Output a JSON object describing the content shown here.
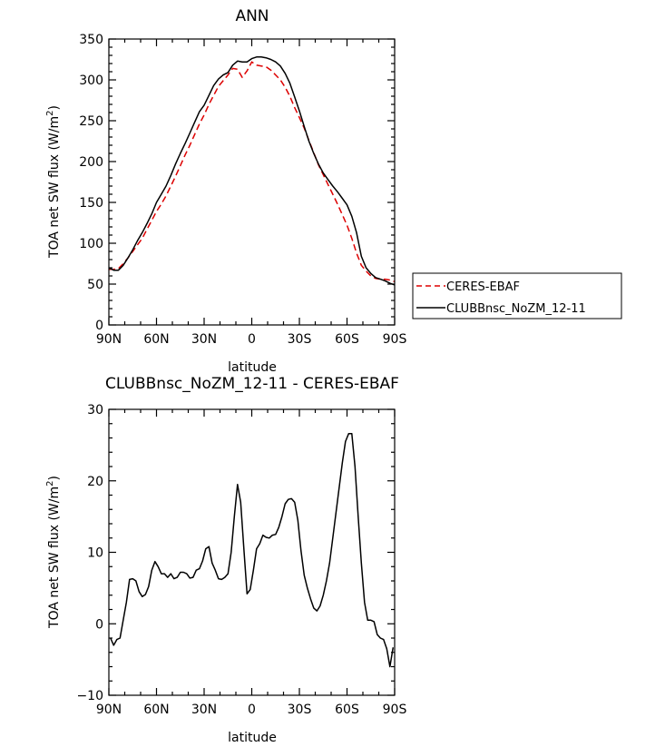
{
  "chart_data": [
    {
      "type": "line",
      "title": "ANN",
      "xlabel": "latitude",
      "ylabel": "TOA net SW flux (W/m²)",
      "ylabel_main": "TOA net SW flux (W/m",
      "ylabel_sup": "2",
      "ylabel_end": ")",
      "xlim": [
        -90,
        90
      ],
      "ylim": [
        0,
        350
      ],
      "x_direction": "90N on left to 90S on right",
      "x_ticks": [
        {
          "value": -90,
          "label": "90N"
        },
        {
          "value": -60,
          "label": "60N"
        },
        {
          "value": -30,
          "label": "30N"
        },
        {
          "value": 0,
          "label": "0"
        },
        {
          "value": 30,
          "label": "30S"
        },
        {
          "value": 60,
          "label": "60S"
        },
        {
          "value": 90,
          "label": "90S"
        }
      ],
      "y_ticks": [
        {
          "value": 0,
          "label": "0"
        },
        {
          "value": 50,
          "label": "50"
        },
        {
          "value": 100,
          "label": "100"
        },
        {
          "value": 150,
          "label": "150"
        },
        {
          "value": 200,
          "label": "200"
        },
        {
          "value": 250,
          "label": "250"
        },
        {
          "value": 300,
          "label": "300"
        },
        {
          "value": 350,
          "label": "350"
        }
      ],
      "legend_placement": "right-middle",
      "series": [
        {
          "name": "CERES-EBAF",
          "color": "#dd0000",
          "dash": "dashed",
          "x": [
            -90,
            -87,
            -84,
            -81,
            -78,
            -75,
            -72,
            -69,
            -66,
            -63,
            -60,
            -57,
            -54,
            -51,
            -48,
            -45,
            -42,
            -39,
            -36,
            -33,
            -30,
            -27,
            -24,
            -21,
            -18,
            -15,
            -12,
            -9,
            -6,
            -3,
            0,
            3,
            6,
            9,
            12,
            15,
            18,
            21,
            24,
            27,
            30,
            33,
            36,
            39,
            42,
            45,
            48,
            51,
            54,
            57,
            60,
            63,
            66,
            69,
            72,
            75,
            78,
            81,
            84,
            87,
            90
          ],
          "y": [
            68,
            68,
            69,
            75,
            82,
            90,
            98,
            106,
            117,
            128,
            139,
            148,
            158,
            170,
            182,
            195,
            208,
            220,
            233,
            246,
            257,
            270,
            281,
            292,
            299,
            306,
            314,
            313,
            303,
            311,
            322,
            318,
            317,
            316,
            312,
            306,
            300,
            291,
            280,
            266,
            254,
            241,
            226,
            211,
            196,
            184,
            172,
            160,
            148,
            135,
            122,
            106,
            88,
            73,
            66,
            60,
            57,
            56,
            56,
            55,
            53
          ]
        },
        {
          "name": "CLUBBnsc_NoZM_12-11",
          "color": "#000000",
          "dash": "solid",
          "x": [
            -90,
            -87,
            -84,
            -81,
            -78,
            -75,
            -72,
            -69,
            -66,
            -63,
            -60,
            -57,
            -54,
            -51,
            -48,
            -45,
            -42,
            -39,
            -36,
            -33,
            -30,
            -27,
            -24,
            -21,
            -18,
            -15,
            -12,
            -9,
            -6,
            -3,
            0,
            3,
            6,
            9,
            12,
            15,
            18,
            21,
            24,
            27,
            30,
            33,
            36,
            39,
            42,
            45,
            48,
            51,
            54,
            57,
            60,
            63,
            66,
            69,
            72,
            75,
            78,
            81,
            84,
            87,
            90
          ],
          "y": [
            70,
            67,
            67,
            73,
            82,
            92,
            103,
            113,
            124,
            136,
            150,
            160,
            170,
            183,
            197,
            210,
            222,
            235,
            248,
            261,
            269,
            281,
            293,
            301,
            306,
            309,
            318,
            323,
            322,
            322,
            326,
            328,
            328,
            327,
            325,
            322,
            317,
            308,
            296,
            279,
            262,
            243,
            225,
            210,
            197,
            186,
            178,
            170,
            163,
            155,
            147,
            133,
            113,
            84,
            70,
            63,
            58,
            56,
            54,
            51,
            49
          ]
        }
      ]
    },
    {
      "type": "line",
      "title": "CLUBBnsc_NoZM_12-11 - CERES-EBAF",
      "xlabel": "latitude",
      "ylabel": "TOA net SW flux (W/m²)",
      "ylabel_main": "TOA net SW flux (W/m",
      "ylabel_sup": "2",
      "ylabel_end": ")",
      "xlim": [
        -90,
        90
      ],
      "ylim": [
        -10,
        30
      ],
      "x_direction": "90N on left to 90S on right",
      "x_ticks": [
        {
          "value": -90,
          "label": "90N"
        },
        {
          "value": -60,
          "label": "60N"
        },
        {
          "value": -30,
          "label": "30N"
        },
        {
          "value": 0,
          "label": "0"
        },
        {
          "value": 30,
          "label": "30S"
        },
        {
          "value": 60,
          "label": "60S"
        },
        {
          "value": 90,
          "label": "90S"
        }
      ],
      "y_ticks": [
        {
          "value": -10,
          "label": "−10"
        },
        {
          "value": 0,
          "label": "0"
        },
        {
          "value": 10,
          "label": "10"
        },
        {
          "value": 20,
          "label": "20"
        },
        {
          "value": 30,
          "label": "30"
        }
      ],
      "series": [
        {
          "color": "#000000",
          "dash": "solid",
          "x": [
            -89,
            -87,
            -85,
            -83,
            -81,
            -79,
            -77,
            -75,
            -73,
            -71,
            -69,
            -67,
            -65,
            -63,
            -61,
            -59,
            -57,
            -55,
            -53,
            -51,
            -49,
            -47,
            -45,
            -43,
            -41,
            -39,
            -37,
            -35,
            -33,
            -31,
            -29,
            -27,
            -25,
            -23,
            -21,
            -19,
            -17,
            -15,
            -13,
            -11,
            -9,
            -7,
            -5,
            -3,
            -1,
            1,
            3,
            5,
            7,
            9,
            11,
            13,
            15,
            17,
            19,
            21,
            23,
            25,
            27,
            29,
            31,
            33,
            35,
            37,
            39,
            41,
            43,
            45,
            47,
            49,
            51,
            53,
            55,
            57,
            59,
            61,
            63,
            65,
            67,
            69,
            71,
            73,
            75,
            77,
            79,
            81,
            83,
            85,
            87,
            89
          ],
          "y": [
            -2.0,
            -3.0,
            -2.2,
            -2.0,
            0.5,
            3.0,
            6.2,
            6.3,
            6.0,
            4.5,
            3.8,
            4.1,
            5.2,
            7.5,
            8.7,
            8.0,
            7.0,
            7.0,
            6.5,
            7.0,
            6.3,
            6.5,
            7.2,
            7.2,
            7.0,
            6.4,
            6.5,
            7.5,
            7.7,
            8.8,
            10.5,
            10.8,
            8.5,
            7.5,
            6.3,
            6.2,
            6.5,
            7.0,
            10.0,
            15.0,
            19.5,
            17.0,
            10.5,
            4.2,
            4.8,
            7.5,
            10.5,
            11.2,
            12.4,
            12.1,
            12.0,
            12.4,
            12.5,
            13.5,
            15.0,
            16.8,
            17.4,
            17.5,
            17.0,
            14.5,
            10.2,
            6.8,
            5.0,
            3.5,
            2.2,
            1.8,
            2.5,
            4.0,
            6.0,
            8.5,
            12.0,
            15.5,
            19.0,
            22.5,
            25.5,
            26.6,
            26.6,
            22.0,
            15.0,
            8.5,
            3.0,
            0.5,
            0.5,
            0.3,
            -1.5,
            -2.0,
            -2.2,
            -3.5,
            -6.0,
            -3.3
          ]
        }
      ]
    }
  ]
}
